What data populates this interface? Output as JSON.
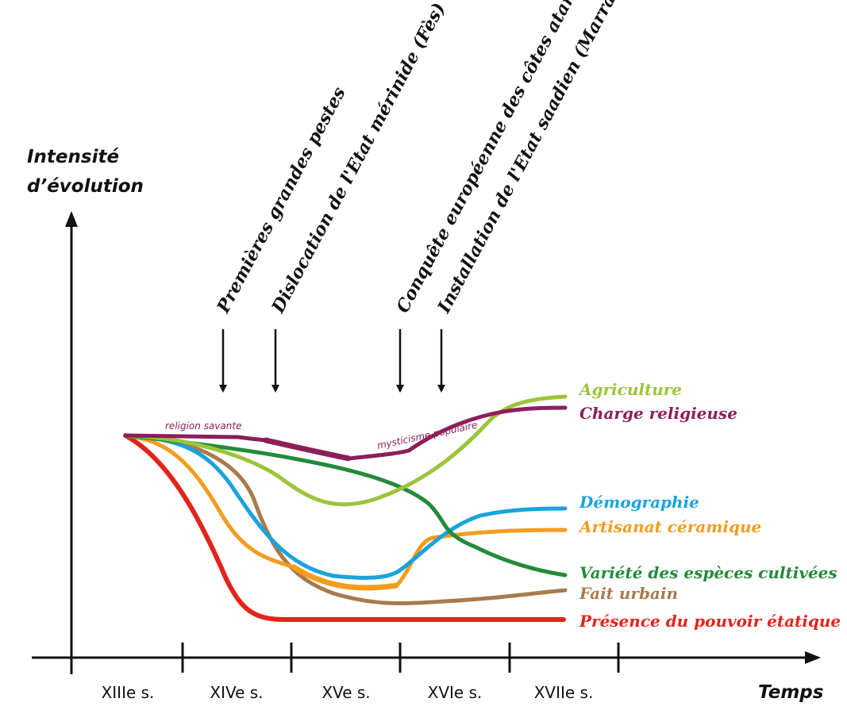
{
  "chart_data": {
    "type": "line",
    "y_axis_label": [
      "Intensité",
      "d’évolution"
    ],
    "x_axis_label": "Temps",
    "categories": [
      "XIIIe s.",
      "XIVe s.",
      "XVe s.",
      "XVIe s.",
      "XVIIe s."
    ],
    "events": [
      {
        "label": "Premières grandes pestes"
      },
      {
        "label": "Dislocation de l'Etat mérinide (Fès)"
      },
      {
        "label": "Conquête européenne des côtes atanlatiques"
      },
      {
        "label": "Installation de l'Etat saadien (Marrakech)"
      }
    ],
    "series": [
      {
        "name": "Agriculture",
        "color": "#9cc43a"
      },
      {
        "name": "Charge religieuse",
        "color": "#8c1f5a"
      },
      {
        "name": "Démographie",
        "color": "#1aa3dc"
      },
      {
        "name": "Artisanat céramique",
        "color": "#f39c1e"
      },
      {
        "name": "Variété des espèces cultivées",
        "color": "#238a3a"
      },
      {
        "name": "Fait urbain",
        "color": "#a87a4c"
      },
      {
        "name": "Présence du pouvoir étatique",
        "color": "#e1251b"
      }
    ],
    "annotations": [
      "religion savante",
      "mysticisme populaire"
    ]
  }
}
